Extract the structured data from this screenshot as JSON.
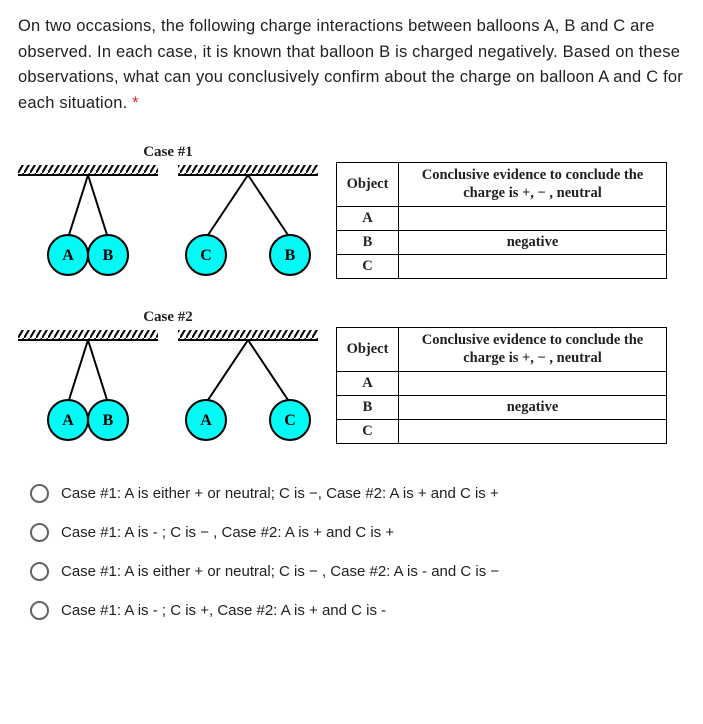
{
  "question": {
    "text": "On two occasions, the following charge interactions between balloons A, B and C are observed. In each case, it is known that balloon B is charged negatively. Based on these observations, what can you conclusively confirm about the charge on balloon A and C for each situation.",
    "required_marker": "*"
  },
  "cases": [
    {
      "label": "Case #1",
      "diagram": {
        "bg": "#ffffff",
        "ceiling_color": "#000000",
        "string_color": "#000000",
        "balloon_fill": "#00faf6",
        "balloon_stroke": "#000000",
        "label_color": "#000000",
        "left": {
          "balloons": [
            "A",
            "B"
          ],
          "mode": "attract"
        },
        "right": {
          "balloons": [
            "C",
            "B"
          ],
          "mode": "repel"
        }
      },
      "table": {
        "header_object": "Object",
        "header_evidence": "Conclusive evidence to conclude the charge is +, − , neutral",
        "rows": [
          {
            "obj": "A",
            "evidence": ""
          },
          {
            "obj": "B",
            "evidence": "negative"
          },
          {
            "obj": "C",
            "evidence": ""
          }
        ]
      }
    },
    {
      "label": "Case #2",
      "diagram": {
        "bg": "#ffffff",
        "ceiling_color": "#000000",
        "string_color": "#000000",
        "balloon_fill": "#00faf6",
        "balloon_stroke": "#000000",
        "label_color": "#000000",
        "left": {
          "balloons": [
            "A",
            "B"
          ],
          "mode": "attract"
        },
        "right": {
          "balloons": [
            "A",
            "C"
          ],
          "mode": "repel"
        }
      },
      "table": {
        "header_object": "Object",
        "header_evidence": "Conclusive evidence to conclude the charge is +, − , neutral",
        "rows": [
          {
            "obj": "A",
            "evidence": ""
          },
          {
            "obj": "B",
            "evidence": "negative"
          },
          {
            "obj": "C",
            "evidence": ""
          }
        ]
      }
    }
  ],
  "options": [
    "Case #1: A is either + or neutral; C is −, Case #2: A is + and C is +",
    "Case #1: A is - ; C is − , Case #2: A is + and C is +",
    "Case #1: A is either + or neutral; C is − , Case #2: A is - and C is −",
    "Case #1: A is - ; C is +, Case #2: A is + and C is -"
  ]
}
